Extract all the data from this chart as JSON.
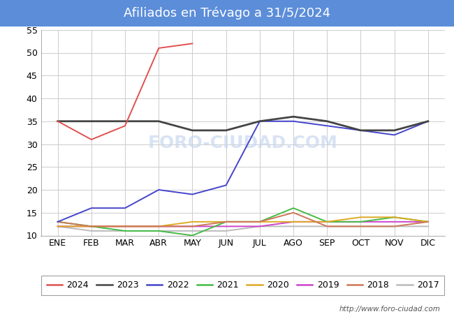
{
  "title": "Afiliados en Trévago a 31/5/2024",
  "title_bg_color": "#5b8dd9",
  "title_text_color": "#ffffff",
  "months": [
    "ENE",
    "FEB",
    "MAR",
    "ABR",
    "MAY",
    "JUN",
    "JUL",
    "AGO",
    "SEP",
    "OCT",
    "NOV",
    "DIC"
  ],
  "ylim": [
    10,
    55
  ],
  "yticks": [
    10,
    15,
    20,
    25,
    30,
    35,
    40,
    45,
    50,
    55
  ],
  "series": {
    "2024": {
      "color": "#e05050",
      "data": [
        35,
        31,
        34,
        51,
        52,
        null,
        null,
        null,
        null,
        null,
        null,
        null
      ]
    },
    "2023": {
      "color": "#444444",
      "data": [
        35,
        35,
        35,
        35,
        33,
        33,
        35,
        36,
        35,
        33,
        33,
        35
      ]
    },
    "2022": {
      "color": "#4444cc",
      "data": [
        13,
        16,
        16,
        20,
        19,
        21,
        35,
        35,
        34,
        33,
        32,
        35
      ]
    },
    "2021": {
      "color": "#44bb44",
      "data": [
        13,
        12,
        11,
        11,
        10,
        13,
        13,
        16,
        13,
        13,
        14,
        13
      ]
    },
    "2020": {
      "color": "#ddaa22",
      "data": [
        12,
        12,
        12,
        12,
        13,
        13,
        13,
        13,
        13,
        14,
        14,
        13
      ]
    },
    "2019": {
      "color": "#cc44cc",
      "data": [
        12,
        12,
        12,
        12,
        12,
        12,
        12,
        13,
        13,
        13,
        13,
        13
      ]
    },
    "2018": {
      "color": "#cc7755",
      "data": [
        13,
        12,
        12,
        12,
        12,
        13,
        13,
        15,
        12,
        12,
        12,
        13
      ]
    },
    "2017": {
      "color": "#bbbbbb",
      "data": [
        12,
        11,
        11,
        11,
        11,
        11,
        12,
        12,
        12,
        12,
        12,
        12
      ]
    }
  },
  "footer_text": "http://www.foro-ciudad.com",
  "watermark": "FORO-CIUDAD.COM",
  "plot_bg_color": "#ffffff",
  "fig_bg_color": "#ffffff",
  "grid_color": "#cccccc"
}
